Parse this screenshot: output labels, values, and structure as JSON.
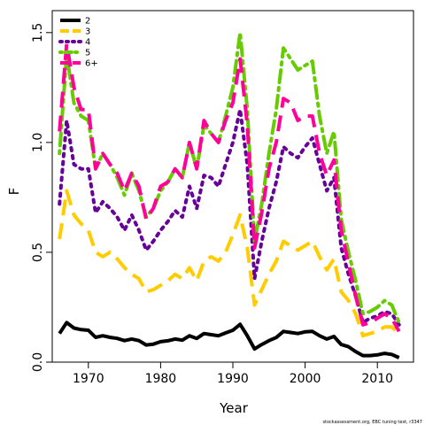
{
  "chart_data": {
    "type": "line",
    "xlabel": "Year",
    "ylabel": "F",
    "xlim": [
      1965,
      2015
    ],
    "ylim": [
      0,
      1.6
    ],
    "x_ticks": [
      1970,
      1980,
      1990,
      2000,
      2010
    ],
    "y_ticks": [
      0.0,
      0.5,
      1.0,
      1.5
    ],
    "y_tick_labels": [
      "0.0",
      "0.5",
      "1.0",
      "1.5"
    ],
    "legend_position": "top-left",
    "footnote": "stockassessment.org, EBC tuning test, r3347",
    "x": [
      1966,
      1967,
      1968,
      1969,
      1970,
      1971,
      1972,
      1973,
      1974,
      1975,
      1976,
      1977,
      1978,
      1979,
      1980,
      1981,
      1982,
      1983,
      1984,
      1985,
      1986,
      1987,
      1988,
      1989,
      1990,
      1991,
      1992,
      1993,
      1994,
      1995,
      1996,
      1997,
      1998,
      1999,
      2000,
      2001,
      2002,
      2003,
      2004,
      2005,
      2006,
      2007,
      2008,
      2009,
      2010,
      2011,
      2012,
      2013
    ],
    "series": [
      {
        "name": "2",
        "color": "#000000",
        "dash": "solid",
        "values": [
          0.13,
          0.18,
          0.155,
          0.148,
          0.145,
          0.113,
          0.12,
          0.113,
          0.108,
          0.098,
          0.105,
          0.098,
          0.078,
          0.082,
          0.093,
          0.097,
          0.105,
          0.1,
          0.12,
          0.108,
          0.13,
          0.125,
          0.12,
          0.133,
          0.145,
          0.172,
          0.12,
          0.06,
          0.08,
          0.098,
          0.112,
          0.14,
          0.135,
          0.13,
          0.138,
          0.14,
          0.12,
          0.105,
          0.117,
          0.08,
          0.07,
          0.048,
          0.03,
          0.03,
          0.033,
          0.04,
          0.035,
          0.02
        ]
      },
      {
        "name": "3",
        "color": "#ffcc00",
        "dash": "longdash",
        "values": [
          0.56,
          0.78,
          0.67,
          0.63,
          0.6,
          0.5,
          0.48,
          0.5,
          0.47,
          0.43,
          0.4,
          0.38,
          0.32,
          0.33,
          0.35,
          0.37,
          0.4,
          0.38,
          0.43,
          0.37,
          0.46,
          0.48,
          0.46,
          0.5,
          0.58,
          0.67,
          0.52,
          0.26,
          0.33,
          0.4,
          0.46,
          0.55,
          0.53,
          0.51,
          0.53,
          0.55,
          0.48,
          0.42,
          0.47,
          0.32,
          0.28,
          0.22,
          0.12,
          0.13,
          0.14,
          0.16,
          0.16,
          0.13
        ]
      },
      {
        "name": "4",
        "color": "#660099",
        "dash": "dotted",
        "values": [
          0.72,
          1.1,
          0.9,
          0.88,
          0.88,
          0.68,
          0.73,
          0.7,
          0.66,
          0.6,
          0.67,
          0.6,
          0.51,
          0.55,
          0.6,
          0.64,
          0.69,
          0.66,
          0.8,
          0.7,
          0.85,
          0.84,
          0.8,
          0.9,
          1.0,
          1.15,
          0.9,
          0.38,
          0.55,
          0.7,
          0.82,
          0.98,
          0.95,
          0.93,
          0.98,
          1.02,
          0.9,
          0.78,
          0.84,
          0.52,
          0.4,
          0.3,
          0.18,
          0.2,
          0.21,
          0.23,
          0.22,
          0.17
        ]
      },
      {
        "name": "5",
        "color": "#66cc00",
        "dash": "dotdash",
        "values": [
          0.95,
          1.4,
          1.18,
          1.12,
          1.1,
          0.88,
          0.95,
          0.9,
          0.84,
          0.76,
          0.86,
          0.78,
          0.66,
          0.7,
          0.78,
          0.82,
          0.88,
          0.84,
          1.0,
          0.88,
          1.08,
          1.04,
          1.0,
          1.12,
          1.25,
          1.5,
          1.15,
          0.55,
          0.72,
          0.95,
          1.15,
          1.43,
          1.38,
          1.33,
          1.35,
          1.37,
          1.12,
          0.95,
          1.05,
          0.65,
          0.5,
          0.37,
          0.22,
          0.23,
          0.25,
          0.28,
          0.26,
          0.18
        ]
      },
      {
        "name": "6+",
        "color": "#ff0099",
        "dash": "longdash",
        "values": [
          1.05,
          1.45,
          1.25,
          1.15,
          1.15,
          0.88,
          0.95,
          0.9,
          0.86,
          0.78,
          0.86,
          0.8,
          0.65,
          0.7,
          0.8,
          0.82,
          0.88,
          0.84,
          1.0,
          0.88,
          1.1,
          1.04,
          1.0,
          1.1,
          1.18,
          1.38,
          1.08,
          0.52,
          0.68,
          0.88,
          1.0,
          1.2,
          1.18,
          1.1,
          1.12,
          1.12,
          0.95,
          0.85,
          0.92,
          0.6,
          0.45,
          0.3,
          0.17,
          0.18,
          0.2,
          0.22,
          0.2,
          0.14
        ]
      }
    ]
  }
}
